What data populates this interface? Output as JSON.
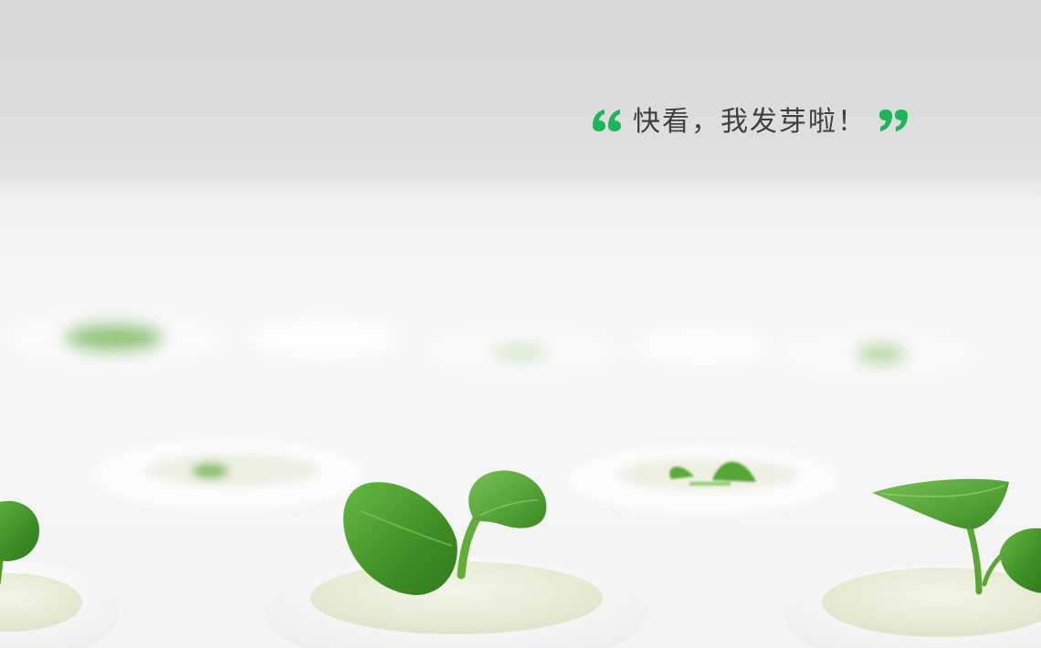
{
  "headline": {
    "text": "快看，我发芽啦！",
    "open_quote_icon": "open-quote-icon",
    "close_quote_icon": "close-quote-icon",
    "accent_color": "#1db45a",
    "text_color": "#3f3f3f"
  },
  "scene": {
    "subject": "seedling-photo",
    "leaf_color": "#4a9a2e",
    "sponge_color": "#ecf0de"
  }
}
